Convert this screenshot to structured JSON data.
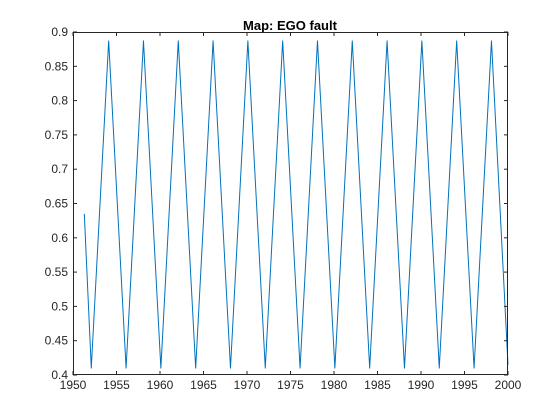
{
  "chart_data": {
    "type": "line",
    "title": "Map: EGO fault",
    "xlabel": "",
    "ylabel": "",
    "xlim": [
      1950,
      2000
    ],
    "ylim": [
      0.4,
      0.9
    ],
    "xticks": [
      1950,
      1955,
      1960,
      1965,
      1970,
      1975,
      1980,
      1985,
      1990,
      1995,
      2000
    ],
    "xtick_labels": [
      "1950",
      "1955",
      "1960",
      "1965",
      "1970",
      "1975",
      "1980",
      "1985",
      "1990",
      "1995",
      "2000"
    ],
    "yticks": [
      0.4,
      0.45,
      0.5,
      0.55,
      0.6,
      0.65,
      0.7,
      0.75,
      0.8,
      0.85,
      0.9
    ],
    "ytick_labels": [
      "0.4",
      "0.45",
      "0.5",
      "0.55",
      "0.6",
      "0.65",
      "0.7",
      "0.75",
      "0.8",
      "0.85",
      "0.9"
    ],
    "grid": false,
    "box": true,
    "series": [
      {
        "color": "#0072BD",
        "x": [
          1951.3,
          1952.1,
          1954.1,
          1956.1,
          1958.1,
          1960.1,
          1962.1,
          1964.1,
          1966.1,
          1968.1,
          1970.1,
          1972.1,
          1974.1,
          1976.1,
          1978.1,
          1980.1,
          1982.1,
          1984.1,
          1986.1,
          1988.1,
          1990.1,
          1992.1,
          1994.1,
          1996.1,
          1998.1,
          2000.0
        ],
        "y": [
          0.635,
          0.41,
          0.887,
          0.41,
          0.887,
          0.41,
          0.887,
          0.41,
          0.887,
          0.41,
          0.887,
          0.41,
          0.887,
          0.41,
          0.887,
          0.41,
          0.887,
          0.41,
          0.887,
          0.41,
          0.887,
          0.41,
          0.887,
          0.41,
          0.887,
          0.415
        ]
      }
    ]
  }
}
